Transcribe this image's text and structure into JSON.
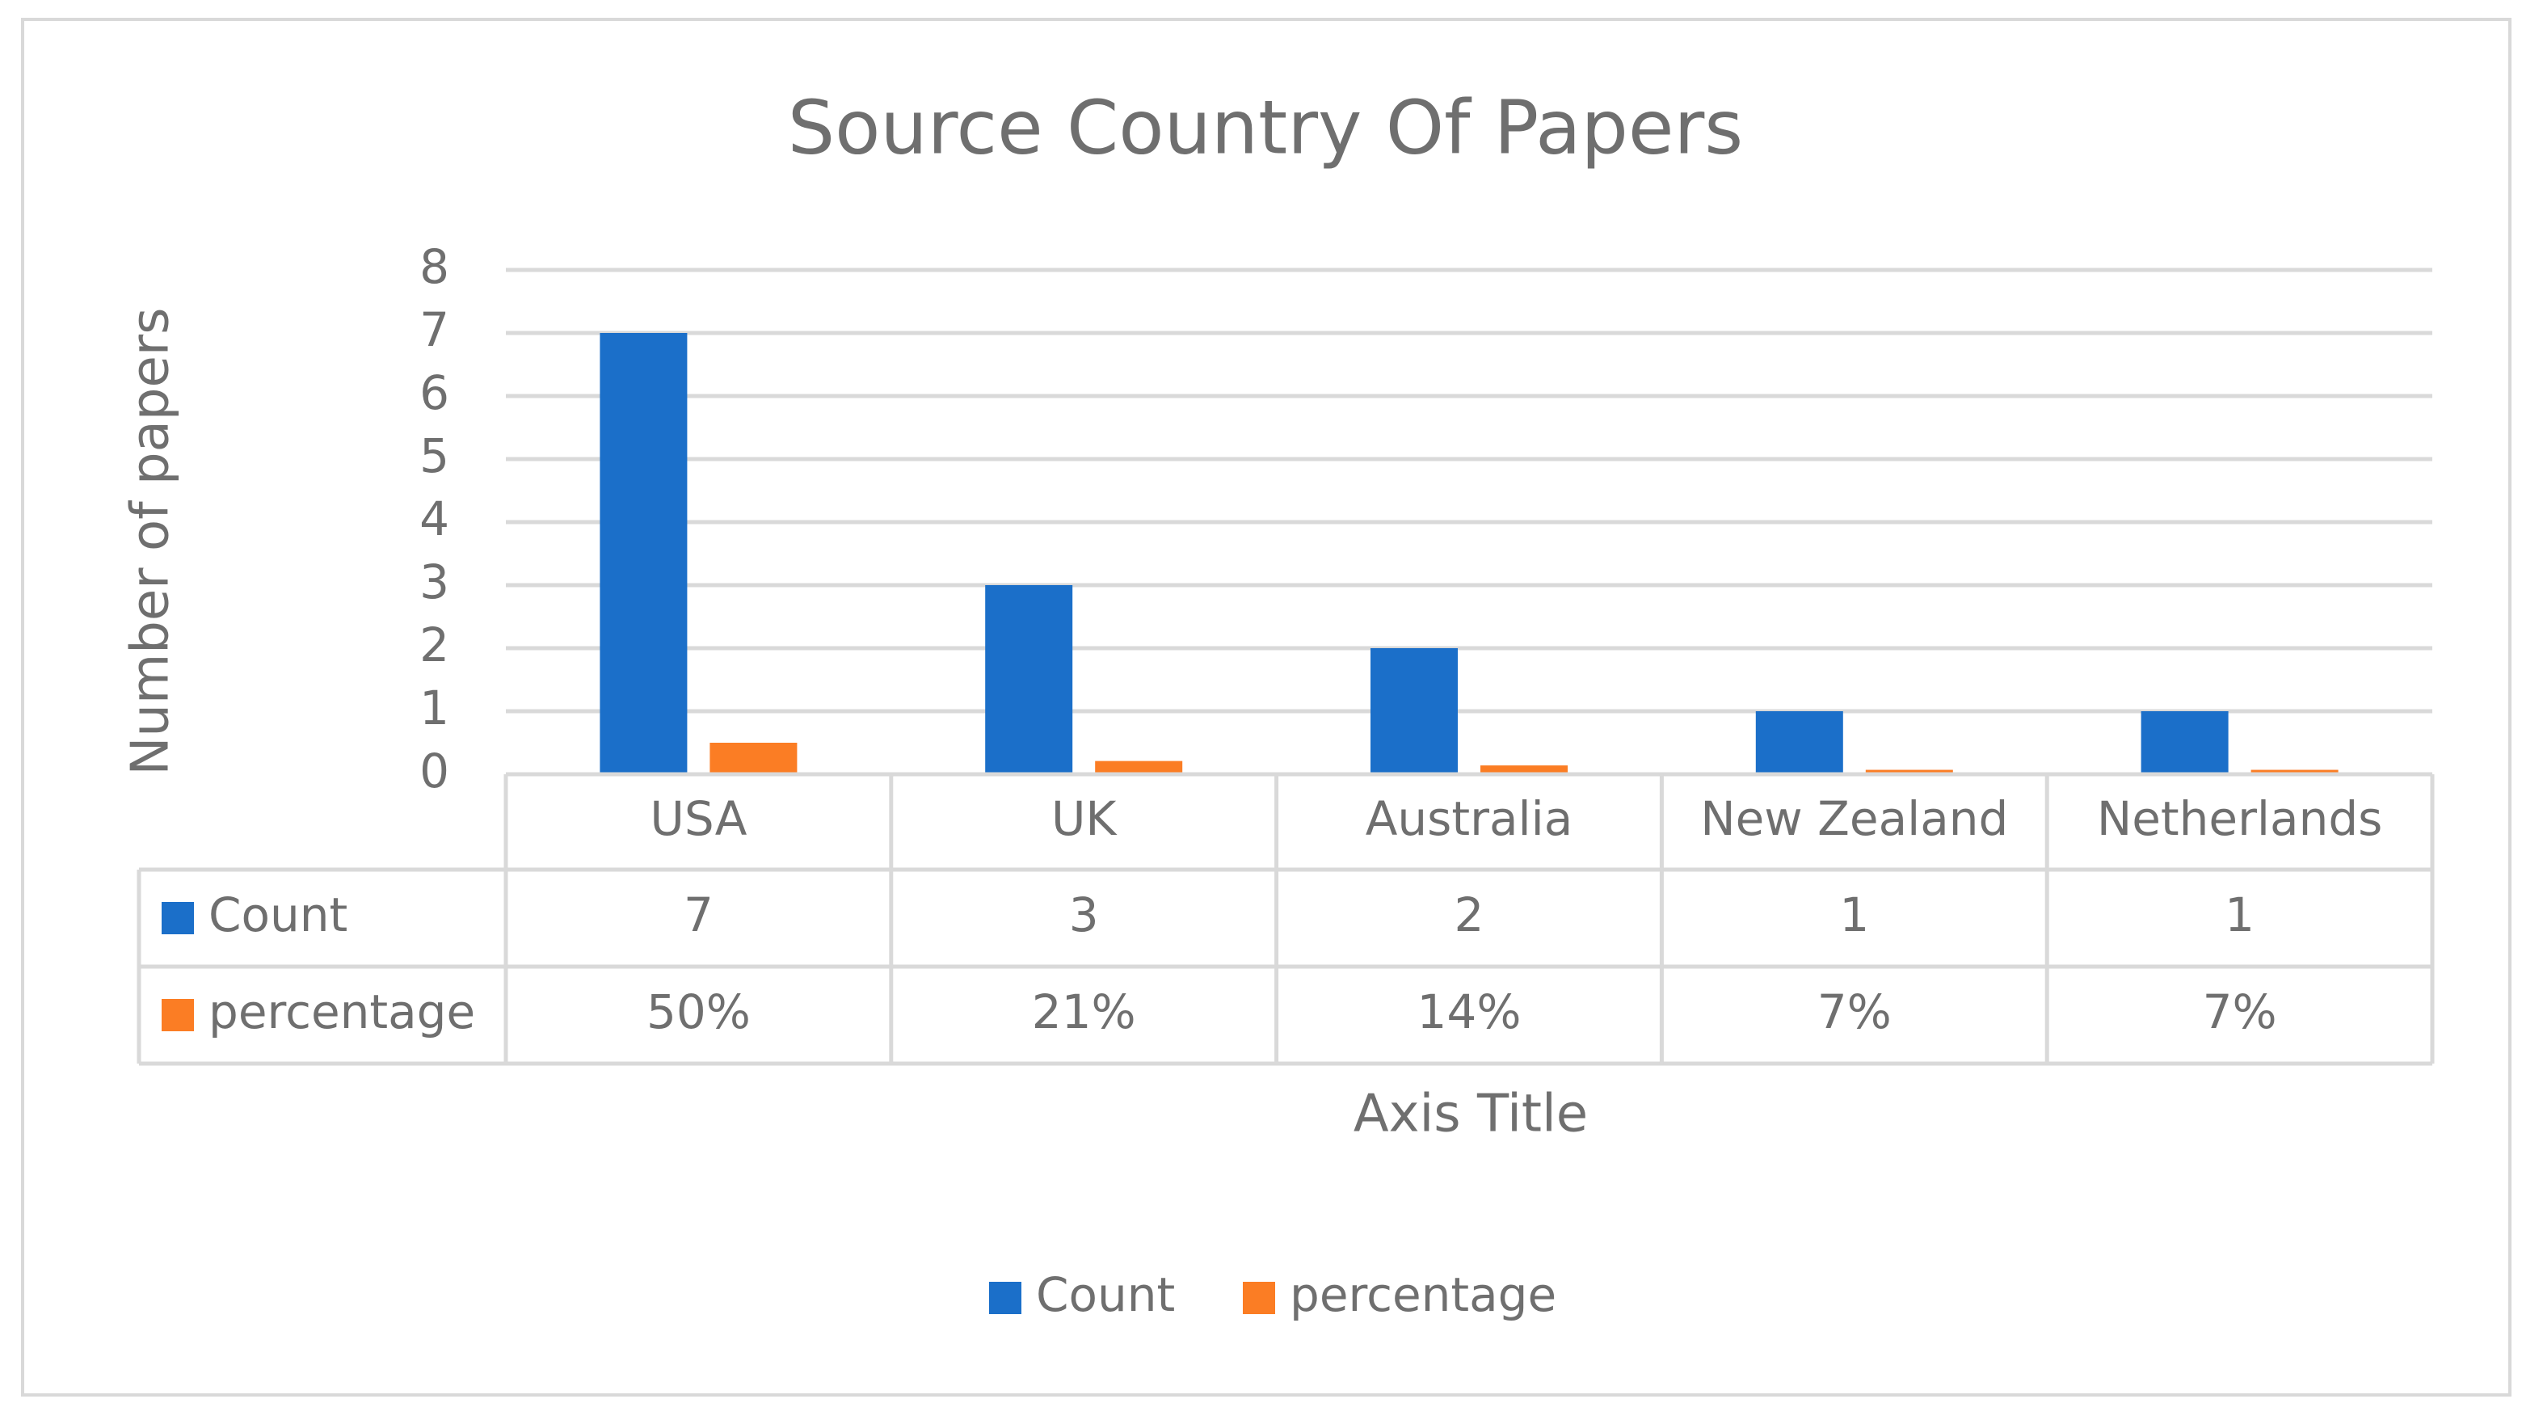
{
  "chart_data": {
    "type": "bar",
    "title": "Source Country Of Papers",
    "x_label": "Axis Title",
    "y_label": "Number of papers",
    "categories": [
      "USA",
      "UK",
      "Australia",
      "New Zealand",
      "Netherlands"
    ],
    "series": [
      {
        "name": "Count",
        "color": "#1b6fc9",
        "values": [
          7,
          3,
          2,
          1,
          1
        ]
      },
      {
        "name": "percentage",
        "color": "#fb7d24",
        "values": [
          0.5,
          0.21,
          0.14,
          0.07,
          0.07
        ],
        "value_labels": [
          "50%",
          "21%",
          "14%",
          "7%",
          "7%"
        ]
      }
    ],
    "ylim": [
      0,
      8
    ],
    "yticks": [
      0,
      1,
      2,
      3,
      4,
      5,
      6,
      7,
      8
    ],
    "grid": true,
    "legend": "bottom",
    "data_table": true
  }
}
